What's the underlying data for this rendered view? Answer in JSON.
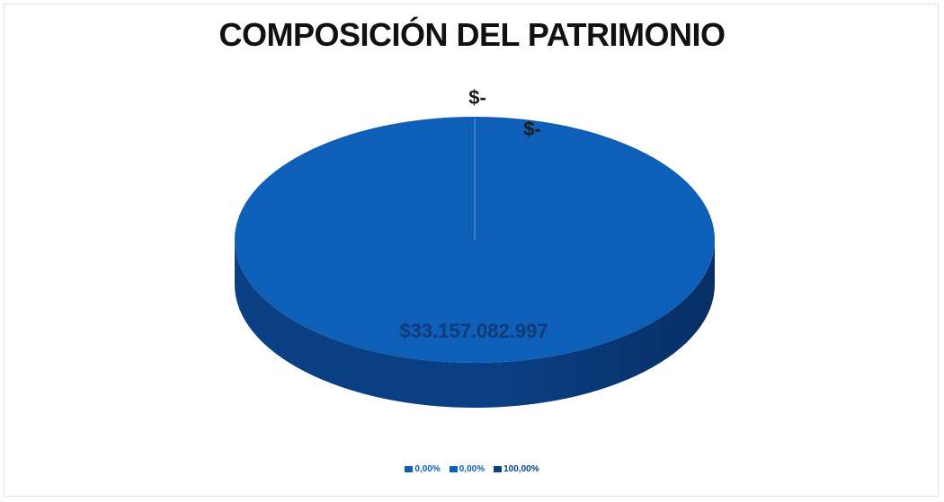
{
  "colors": {
    "slice_top": "#0e5fb8",
    "slice_side": "#0a3f84",
    "slice_side_dark": "#082f66",
    "divider": "#4f86cf",
    "label": "#123a78"
  },
  "chart_data": {
    "type": "pie",
    "style": "3d",
    "title": "COMPOSICIÓN DEL PATRIMONIO",
    "slices": [
      {
        "value": 0,
        "label": "$-",
        "percent": "0,00%"
      },
      {
        "value": 0,
        "label": "$-",
        "percent": "0,00%"
      },
      {
        "value": 33157082997,
        "label": "$33.157.082.997",
        "percent": "100,00%"
      }
    ],
    "legend_position": "bottom"
  }
}
